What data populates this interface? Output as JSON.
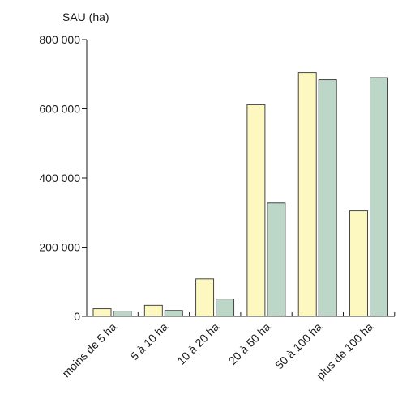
{
  "chart_data": {
    "type": "bar",
    "ylabel": "SAU (ha)",
    "categories": [
      "moins de 5 ha",
      "5 à 10 ha",
      "10 à 20 ha",
      "20 à 50 ha",
      "50 à 100 ha",
      "plus de 100 ha"
    ],
    "series": [
      {
        "color": "#fdf8c0",
        "values": [
          22000,
          32000,
          108000,
          612000,
          705000,
          305000
        ]
      },
      {
        "color": "#bcd7c8",
        "values": [
          15000,
          17000,
          50000,
          328000,
          684000,
          690000
        ]
      }
    ],
    "ylim": [
      0,
      800000
    ],
    "yticks": [
      0,
      200000,
      400000,
      600000,
      800000
    ],
    "ytick_labels": [
      "0",
      "200 000",
      "400 000",
      "600 000",
      "800 000"
    ],
    "grid": false,
    "legend": "none"
  }
}
